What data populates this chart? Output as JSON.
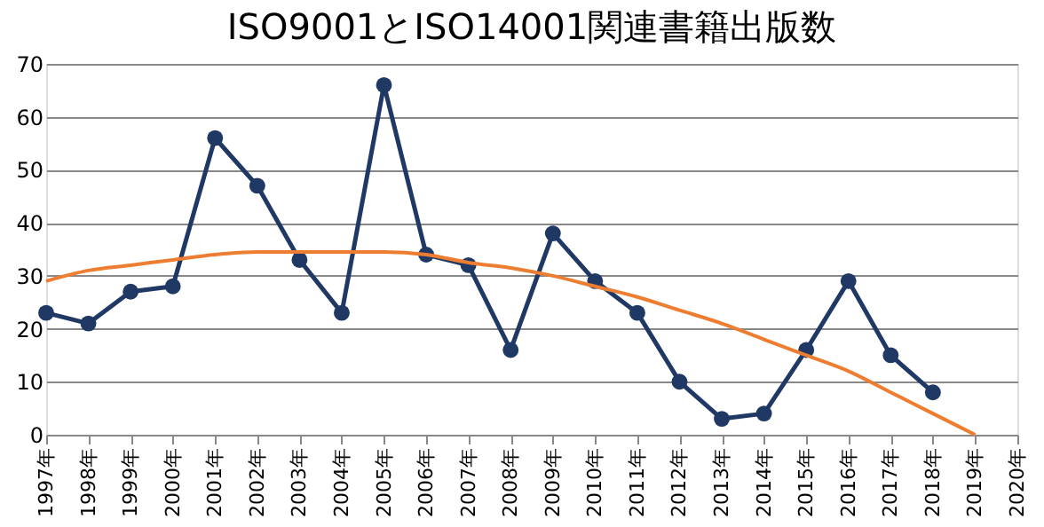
{
  "chart_data": {
    "type": "line",
    "title": "ISO9001とISO14001関連書籍出版数",
    "categories": [
      "1997年",
      "1998年",
      "1999年",
      "2000年",
      "2001年",
      "2002年",
      "2003年",
      "2004年",
      "2005年",
      "2006年",
      "2007年",
      "2008年",
      "2009年",
      "2010年",
      "2011年",
      "2012年",
      "2013年",
      "2014年",
      "2015年",
      "2016年",
      "2017年",
      "2018年",
      "2019年",
      "2020年"
    ],
    "series": [
      {
        "color": "#1f3864",
        "marker": "circle",
        "values": [
          23,
          21,
          27,
          28,
          56,
          47,
          33,
          23,
          66,
          34,
          32,
          16,
          38,
          29,
          23,
          10,
          3,
          4,
          16,
          29,
          15,
          8,
          null,
          null
        ]
      },
      {
        "type": "line",
        "color": "#ed7d31",
        "marker": "none",
        "values": [
          29,
          31,
          32,
          33,
          34,
          34.5,
          34.5,
          34.5,
          34.5,
          34,
          32.5,
          31.5,
          30,
          28,
          26,
          23.5,
          21,
          18,
          15,
          12,
          8,
          4,
          0,
          null
        ]
      }
    ],
    "ylim": [
      0,
      70
    ],
    "yticks": [
      0,
      10,
      20,
      30,
      40,
      50,
      60,
      70
    ],
    "grid": "y"
  }
}
